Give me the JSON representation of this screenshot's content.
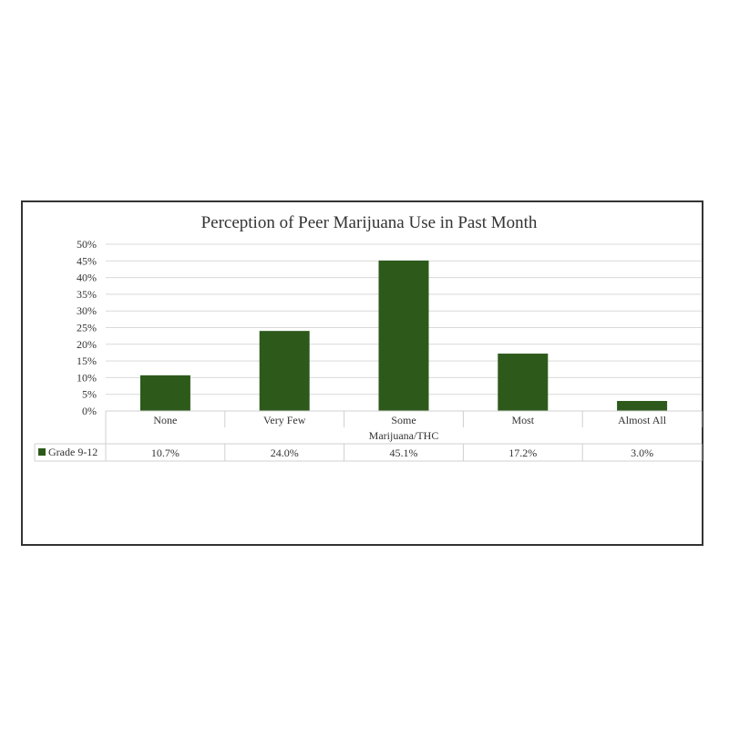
{
  "chart_data": {
    "type": "bar",
    "title": "Perception of Peer Marijuana Use in Past Month",
    "xlabel": "Marijuana/THC",
    "ylabel": "",
    "categories": [
      "None",
      "Very Few",
      "Some",
      "Most",
      "Almost All"
    ],
    "series": [
      {
        "name": "Grade  9-12",
        "values": [
          10.7,
          24.0,
          45.1,
          17.2,
          3.0
        ],
        "labels": [
          "10.7%",
          "24.0%",
          "45.1%",
          "17.2%",
          "3.0%"
        ],
        "color": "#2d5a1b"
      }
    ],
    "ylim": [
      0,
      50
    ],
    "yticks": [
      "0%",
      "5%",
      "10%",
      "15%",
      "20%",
      "25%",
      "30%",
      "35%",
      "40%",
      "45%",
      "50%"
    ],
    "grid": true,
    "legend": "data-table"
  }
}
